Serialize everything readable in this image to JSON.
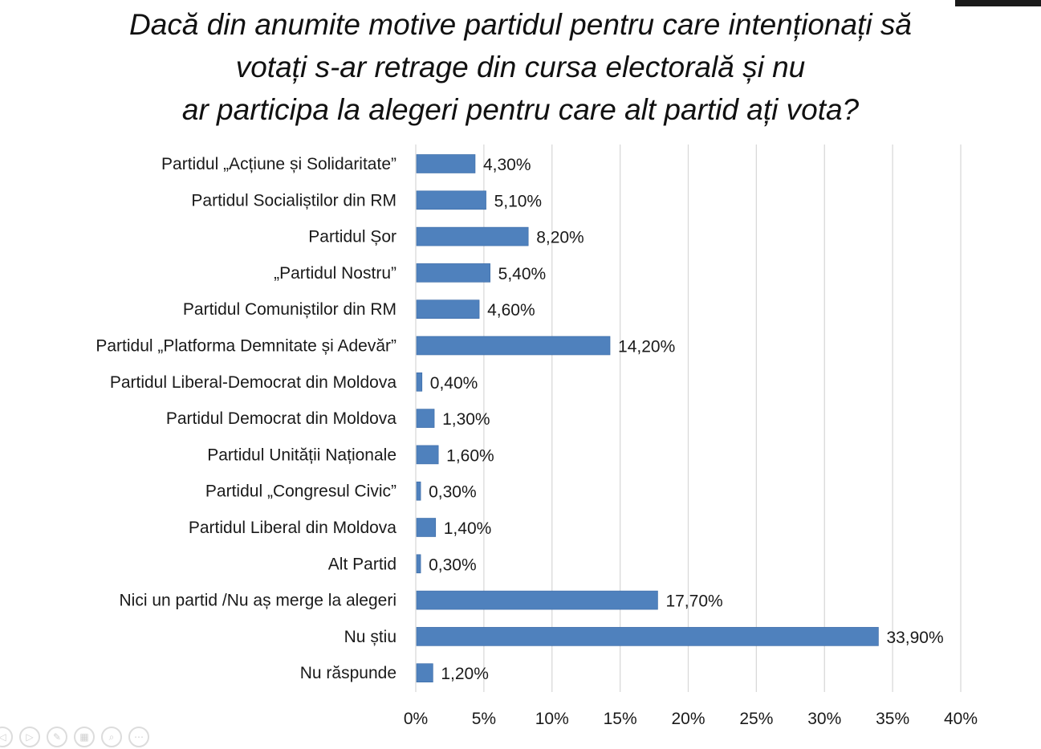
{
  "chart_data": {
    "type": "bar",
    "orientation": "horizontal",
    "title_lines": [
      "Dacă din anumite motive partidul pentru care intenționați să",
      "votați s-ar retrage din cursa electorală și nu",
      "ar participa la alegeri pentru care alt partid ați vota?"
    ],
    "categories": [
      "Partidul „Acțiune și Solidaritate”",
      "Partidul Socialiștilor din RM",
      "Partidul Șor",
      "„Partidul Nostru”",
      "Partidul Comuniștilor din RM",
      "Partidul „Platforma Demnitate și Adevăr”",
      "Partidul Liberal-Democrat din Moldova",
      "Partidul Democrat din Moldova",
      "Partidul Unității Naționale",
      "Partidul „Congresul Civic”",
      "Partidul Liberal din Moldova",
      "Alt Partid",
      "Nici un partid /Nu aș merge la alegeri",
      "Nu știu",
      "Nu răspunde"
    ],
    "values": [
      4.3,
      5.1,
      8.2,
      5.4,
      4.6,
      14.2,
      0.4,
      1.3,
      1.6,
      0.3,
      1.4,
      0.3,
      17.7,
      33.9,
      1.2
    ],
    "data_labels": [
      "4,30%",
      "5,10%",
      "8,20%",
      "5,40%",
      "4,60%",
      "14,20%",
      "0,40%",
      "1,30%",
      "1,60%",
      "0,30%",
      "1,40%",
      "0,30%",
      "17,70%",
      "33,90%",
      "1,20%"
    ],
    "xlim": [
      0,
      40
    ],
    "x_ticks": [
      0,
      5,
      10,
      15,
      20,
      25,
      30,
      35,
      40
    ],
    "x_tick_labels": [
      "0%",
      "5%",
      "10%",
      "15%",
      "20%",
      "25%",
      "30%",
      "35%",
      "40%"
    ],
    "xlabel": "",
    "ylabel": "",
    "grid": "vertical",
    "legend": "none",
    "colors": {
      "bar": "#4f81bd",
      "bar_edge": "#3a6aa6",
      "grid": "#d9d9d9",
      "text": "#1a1a1a"
    }
  },
  "player_controls": [
    {
      "name": "previous-slide-icon",
      "glyph": "◁"
    },
    {
      "name": "next-slide-icon",
      "glyph": "▷"
    },
    {
      "name": "pen-icon",
      "glyph": "✎"
    },
    {
      "name": "slides-grid-icon",
      "glyph": "▦"
    },
    {
      "name": "zoom-icon",
      "glyph": "⌕"
    },
    {
      "name": "more-options-icon",
      "glyph": "⋯"
    }
  ]
}
